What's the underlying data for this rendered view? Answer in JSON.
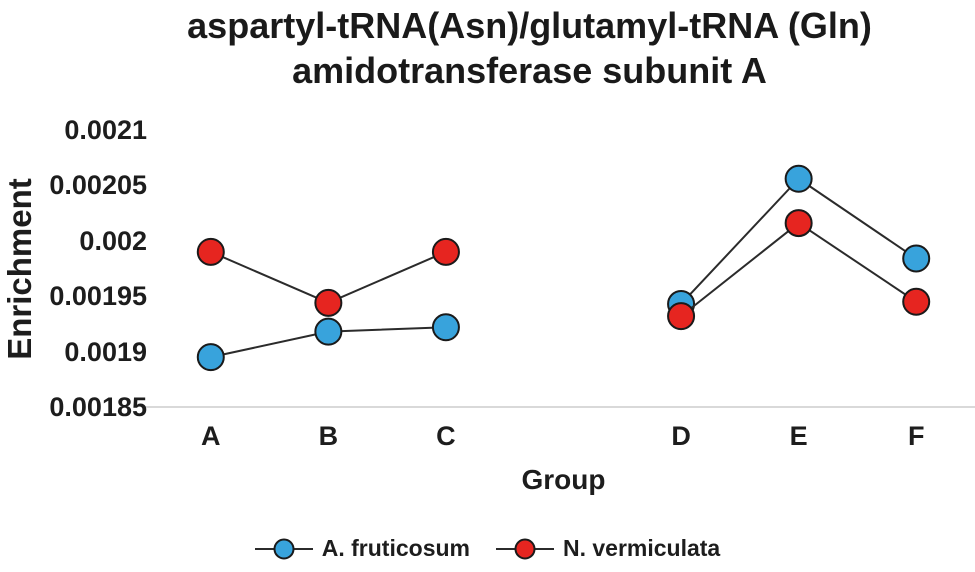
{
  "chart_data": {
    "type": "line",
    "title": "aspartyl-tRNA(Asn)/glutamyl-tRNA (Gln) amidotransferase subunit A",
    "title_lines": [
      "aspartyl-tRNA(Asn)/glutamyl-tRNA (Gln)",
      "amidotransferase subunit A"
    ],
    "xlabel": "Group",
    "ylabel": "Enrichment",
    "categories": [
      "A",
      "B",
      "C",
      "D",
      "E",
      "F"
    ],
    "slot_indices": [
      0,
      1,
      2,
      4,
      5,
      6
    ],
    "num_slots": 7,
    "gap_note": "line break between C and D (empty category slot)",
    "ylim": [
      0.00185,
      0.0021
    ],
    "ytick_step": 5e-05,
    "ytick_labels": [
      "0.00185",
      "0.0019",
      "0.00195",
      "0.002",
      "0.00205",
      "0.0021"
    ],
    "grid": "off",
    "legend_position": "bottom",
    "series": [
      {
        "name": "A. fruticosum",
        "color": "#38a3dc",
        "values": [
          0.001895,
          0.001918,
          0.001922,
          0.001943,
          0.002056,
          0.001984
        ]
      },
      {
        "name": "N. vermiculata",
        "color": "#e62520",
        "values": [
          0.00199,
          0.001944,
          0.00199,
          0.001932,
          0.002016,
          0.001945
        ]
      }
    ],
    "marker_stroke": "#1a1a1a",
    "line_color": "#2b2b2b",
    "axis_color": "#d9d9d9",
    "text_color": "#1d1d1d",
    "background": "#ffffff"
  }
}
